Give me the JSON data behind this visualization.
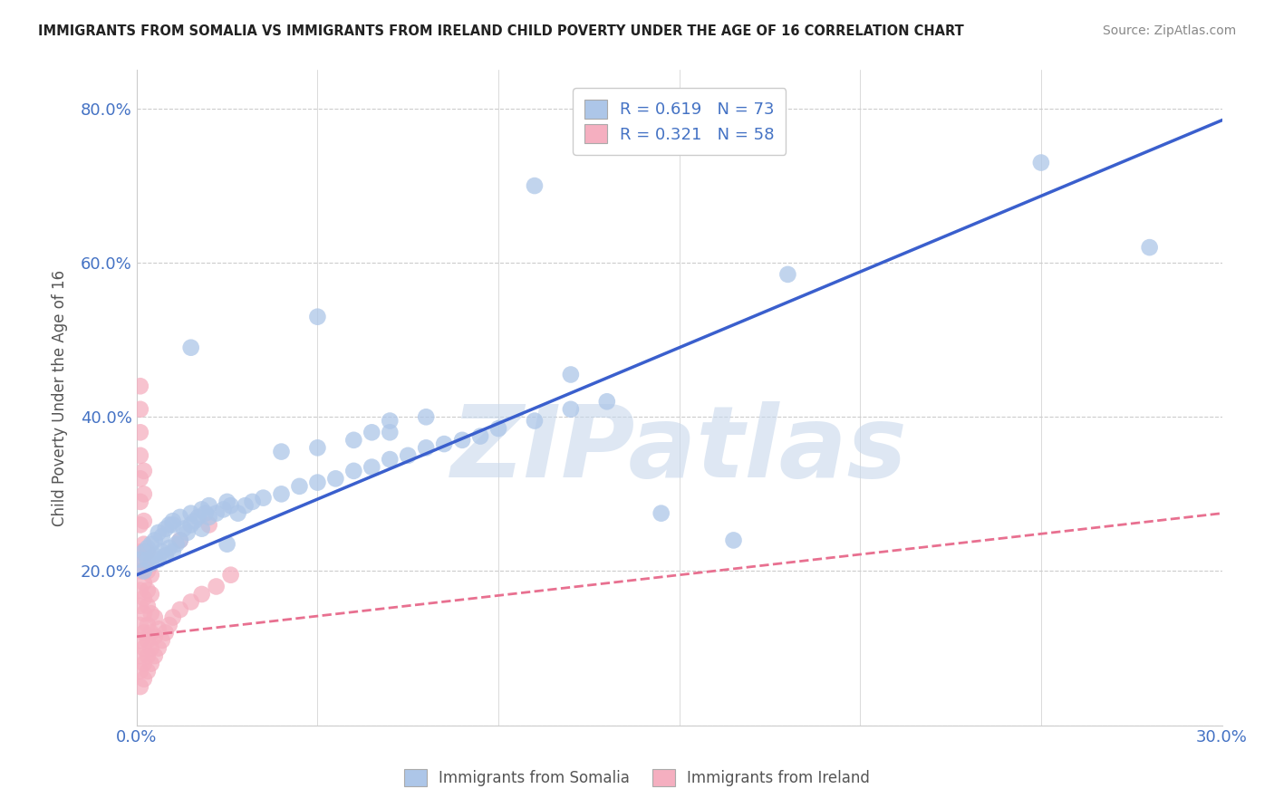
{
  "title": "IMMIGRANTS FROM SOMALIA VS IMMIGRANTS FROM IRELAND CHILD POVERTY UNDER THE AGE OF 16 CORRELATION CHART",
  "source": "Source: ZipAtlas.com",
  "ylabel": "Child Poverty Under the Age of 16",
  "xlim": [
    0.0,
    0.3
  ],
  "ylim": [
    0.0,
    0.85
  ],
  "xticks": [
    0.0,
    0.05,
    0.1,
    0.15,
    0.2,
    0.25,
    0.3
  ],
  "xticklabels": [
    "0.0%",
    "",
    "",
    "",
    "",
    "",
    "30.0%"
  ],
  "yticks": [
    0.0,
    0.2,
    0.4,
    0.6,
    0.8
  ],
  "yticklabels": [
    "",
    "20.0%",
    "40.0%",
    "60.0%",
    "80.0%"
  ],
  "somalia_color": "#adc6e8",
  "ireland_color": "#f5afc0",
  "somalia_line_color": "#3a5fcd",
  "ireland_line_color": "#e87090",
  "somalia_R": 0.619,
  "somalia_N": 73,
  "ireland_R": 0.321,
  "ireland_N": 58,
  "watermark": "ZIPatlas",
  "watermark_color": "#c8d8ec",
  "background_color": "#ffffff",
  "grid_color": "#cccccc",
  "tick_color": "#4472c4",
  "somalia_line_x": [
    0.0,
    0.3
  ],
  "somalia_line_y": [
    0.195,
    0.785
  ],
  "ireland_line_x": [
    0.0,
    0.3
  ],
  "ireland_line_y": [
    0.115,
    0.275
  ],
  "somalia_scatter": [
    [
      0.001,
      0.215
    ],
    [
      0.002,
      0.2
    ],
    [
      0.002,
      0.225
    ],
    [
      0.003,
      0.215
    ],
    [
      0.003,
      0.23
    ],
    [
      0.004,
      0.21
    ],
    [
      0.004,
      0.235
    ],
    [
      0.005,
      0.22
    ],
    [
      0.005,
      0.24
    ],
    [
      0.006,
      0.215
    ],
    [
      0.006,
      0.25
    ],
    [
      0.007,
      0.225
    ],
    [
      0.007,
      0.245
    ],
    [
      0.008,
      0.22
    ],
    [
      0.008,
      0.255
    ],
    [
      0.009,
      0.23
    ],
    [
      0.009,
      0.26
    ],
    [
      0.01,
      0.225
    ],
    [
      0.01,
      0.265
    ],
    [
      0.011,
      0.235
    ],
    [
      0.012,
      0.24
    ],
    [
      0.013,
      0.255
    ],
    [
      0.014,
      0.25
    ],
    [
      0.015,
      0.26
    ],
    [
      0.016,
      0.265
    ],
    [
      0.017,
      0.27
    ],
    [
      0.018,
      0.255
    ],
    [
      0.019,
      0.275
    ],
    [
      0.02,
      0.27
    ],
    [
      0.022,
      0.275
    ],
    [
      0.024,
      0.28
    ],
    [
      0.026,
      0.285
    ],
    [
      0.028,
      0.275
    ],
    [
      0.03,
      0.285
    ],
    [
      0.032,
      0.29
    ],
    [
      0.035,
      0.295
    ],
    [
      0.04,
      0.3
    ],
    [
      0.045,
      0.31
    ],
    [
      0.05,
      0.315
    ],
    [
      0.055,
      0.32
    ],
    [
      0.06,
      0.33
    ],
    [
      0.065,
      0.335
    ],
    [
      0.07,
      0.345
    ],
    [
      0.075,
      0.35
    ],
    [
      0.08,
      0.36
    ],
    [
      0.085,
      0.365
    ],
    [
      0.09,
      0.37
    ],
    [
      0.095,
      0.375
    ],
    [
      0.1,
      0.385
    ],
    [
      0.11,
      0.395
    ],
    [
      0.12,
      0.41
    ],
    [
      0.13,
      0.42
    ],
    [
      0.05,
      0.53
    ],
    [
      0.12,
      0.455
    ],
    [
      0.145,
      0.275
    ],
    [
      0.165,
      0.24
    ],
    [
      0.015,
      0.49
    ],
    [
      0.065,
      0.38
    ],
    [
      0.07,
      0.395
    ],
    [
      0.08,
      0.4
    ],
    [
      0.04,
      0.355
    ],
    [
      0.05,
      0.36
    ],
    [
      0.06,
      0.37
    ],
    [
      0.07,
      0.38
    ],
    [
      0.01,
      0.26
    ],
    [
      0.012,
      0.27
    ],
    [
      0.015,
      0.275
    ],
    [
      0.018,
      0.28
    ],
    [
      0.02,
      0.285
    ],
    [
      0.025,
      0.29
    ],
    [
      0.28,
      0.62
    ],
    [
      0.25,
      0.73
    ],
    [
      0.11,
      0.7
    ],
    [
      0.18,
      0.585
    ],
    [
      0.025,
      0.235
    ]
  ],
  "ireland_scatter": [
    [
      0.001,
      0.05
    ],
    [
      0.001,
      0.07
    ],
    [
      0.001,
      0.09
    ],
    [
      0.001,
      0.11
    ],
    [
      0.001,
      0.13
    ],
    [
      0.001,
      0.155
    ],
    [
      0.001,
      0.175
    ],
    [
      0.001,
      0.2
    ],
    [
      0.001,
      0.225
    ],
    [
      0.001,
      0.26
    ],
    [
      0.001,
      0.29
    ],
    [
      0.001,
      0.32
    ],
    [
      0.001,
      0.35
    ],
    [
      0.001,
      0.38
    ],
    [
      0.001,
      0.41
    ],
    [
      0.001,
      0.44
    ],
    [
      0.002,
      0.06
    ],
    [
      0.002,
      0.08
    ],
    [
      0.002,
      0.1
    ],
    [
      0.002,
      0.12
    ],
    [
      0.002,
      0.145
    ],
    [
      0.002,
      0.165
    ],
    [
      0.002,
      0.185
    ],
    [
      0.002,
      0.21
    ],
    [
      0.002,
      0.235
    ],
    [
      0.002,
      0.265
    ],
    [
      0.002,
      0.3
    ],
    [
      0.002,
      0.33
    ],
    [
      0.003,
      0.07
    ],
    [
      0.003,
      0.09
    ],
    [
      0.003,
      0.11
    ],
    [
      0.003,
      0.13
    ],
    [
      0.003,
      0.155
    ],
    [
      0.003,
      0.175
    ],
    [
      0.003,
      0.2
    ],
    [
      0.003,
      0.225
    ],
    [
      0.004,
      0.08
    ],
    [
      0.004,
      0.1
    ],
    [
      0.004,
      0.12
    ],
    [
      0.004,
      0.145
    ],
    [
      0.004,
      0.17
    ],
    [
      0.004,
      0.195
    ],
    [
      0.005,
      0.09
    ],
    [
      0.005,
      0.115
    ],
    [
      0.005,
      0.14
    ],
    [
      0.006,
      0.1
    ],
    [
      0.006,
      0.125
    ],
    [
      0.007,
      0.11
    ],
    [
      0.008,
      0.12
    ],
    [
      0.009,
      0.13
    ],
    [
      0.01,
      0.14
    ],
    [
      0.012,
      0.15
    ],
    [
      0.015,
      0.16
    ],
    [
      0.018,
      0.17
    ],
    [
      0.022,
      0.18
    ],
    [
      0.026,
      0.195
    ],
    [
      0.012,
      0.24
    ],
    [
      0.02,
      0.26
    ]
  ]
}
